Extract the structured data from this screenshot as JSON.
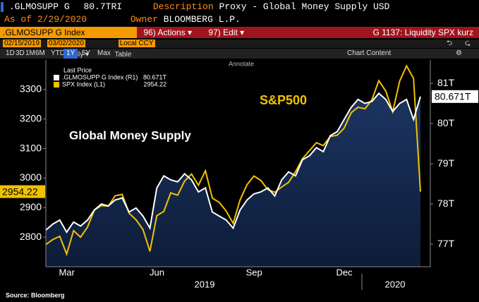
{
  "toolbar": {
    "ticker": ".GLMOSUPP G",
    "price": "80.7TRI",
    "description_label": "Description",
    "description": "Proxy - Global Money Supply USD",
    "asof_label": "As of",
    "asof": "2/29/2020",
    "owner_label": "Owner",
    "owner": "BLOOMBERG L.P.",
    "security": ".GLMOSUPP G Index",
    "actions": "96) Actions ▾",
    "edit": "97) Edit ▾",
    "page_title": "G 1137: Liquidity SPX kurz",
    "start_date": "02/15/2019",
    "end_date": "03/02/2020",
    "currency": "Local CCY",
    "ranges": [
      "1D",
      "3D",
      "1M",
      "6M",
      "YTD",
      "1Y",
      "5Y",
      "Max"
    ],
    "period": "Daily ▾",
    "table": "Table",
    "chart_content": "Chart Content",
    "annotate": "Annotate"
  },
  "chart_data": {
    "type": "line",
    "legend_title": "Last Price",
    "annotations": [
      "Global Money Supply",
      "S&P500"
    ],
    "source": "Source: Bloomberg",
    "categories": [
      null,
      null,
      "Mar",
      null,
      null,
      null,
      null,
      null,
      null,
      null,
      null,
      null,
      null,
      null,
      null,
      "Jun",
      null,
      null,
      null,
      null,
      null,
      null,
      null,
      null,
      null,
      null,
      null,
      null,
      null,
      "Sep",
      null,
      null,
      null,
      null,
      null,
      null,
      null,
      null,
      null,
      null,
      null,
      null,
      "Dec",
      null,
      null,
      null,
      null,
      null,
      null,
      null,
      null,
      null,
      null,
      null,
      null
    ],
    "year_labels": [
      "2019",
      "2020"
    ],
    "series": [
      {
        "name": "SPX Index (L1)",
        "color": "#f2c200",
        "axis": "y",
        "last_label": "2954.22",
        "values": [
          2775,
          2792,
          2803,
          2743,
          2822,
          2800,
          2834,
          2892,
          2907,
          2905,
          2940,
          2945,
          2881,
          2859,
          2826,
          2752,
          2873,
          2887,
          2950,
          2942,
          2990,
          3014,
          2976,
          3025,
          2932,
          2918,
          2888,
          2847,
          2926,
          2978,
          3007,
          2992,
          2961,
          2952,
          2970,
          2986,
          3022,
          3066,
          3093,
          3120,
          3110,
          3141,
          3145,
          3169,
          3221,
          3240,
          3235,
          3265,
          3330,
          3295,
          3225,
          3328,
          3380,
          3338,
          2954.22
        ]
      },
      {
        "name": ".GLMOSUPP G Index (R1)",
        "color": "#ffffff",
        "axis": "y2",
        "last_label": "80.671T",
        "values": [
          77.35,
          77.5,
          77.6,
          77.3,
          77.55,
          77.45,
          77.6,
          77.85,
          78.0,
          77.95,
          78.1,
          78.15,
          77.8,
          77.9,
          77.7,
          77.4,
          78.4,
          78.7,
          78.6,
          78.55,
          78.75,
          78.6,
          78.3,
          78.4,
          77.8,
          77.7,
          77.6,
          77.4,
          77.85,
          78.1,
          78.25,
          78.3,
          78.4,
          78.2,
          78.6,
          78.8,
          78.7,
          79.1,
          79.2,
          79.4,
          79.3,
          79.7,
          79.8,
          80.1,
          80.4,
          80.6,
          80.5,
          80.55,
          80.75,
          80.6,
          80.3,
          80.5,
          80.6,
          80.1,
          80.671
        ]
      }
    ],
    "ylim": [
      2700,
      3400
    ],
    "yticks": [
      2800,
      2900,
      3000,
      3100,
      3200,
      3300
    ],
    "y2lim": [
      76.44,
      81.58
    ],
    "y2ticks": [
      {
        "value": 77,
        "label": "77T"
      },
      {
        "value": 78,
        "label": "78T"
      },
      {
        "value": 79,
        "label": "79T"
      },
      {
        "value": 80,
        "label": "80T"
      },
      {
        "value": 81,
        "label": "81T"
      }
    ]
  }
}
